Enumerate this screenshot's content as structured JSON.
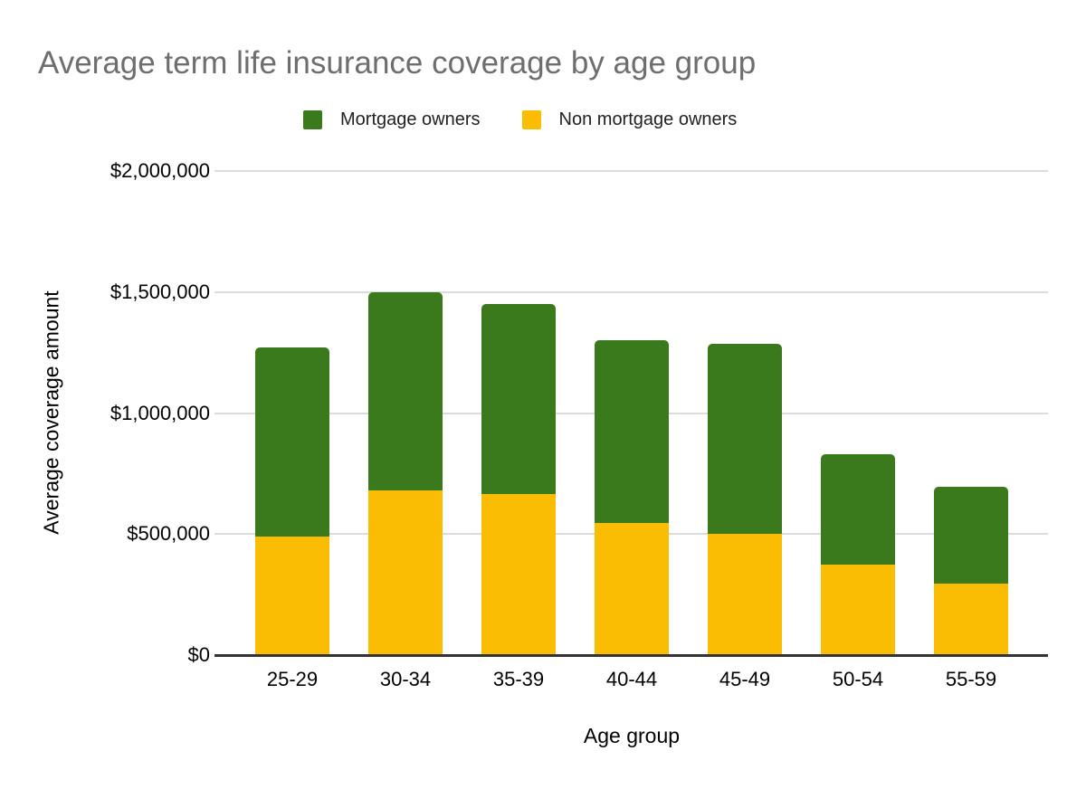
{
  "title": "Average term life insurance coverage by age group",
  "legend": {
    "items": [
      {
        "label": "Mortgage owners",
        "color": "#3a7a1d"
      },
      {
        "label": "Non mortgage owners",
        "color": "#fbbc04"
      }
    ]
  },
  "axes": {
    "x_title": "Age group",
    "y_title": "Average coverage amount"
  },
  "chart_data": {
    "type": "bar",
    "stacked": true,
    "title": "Average term life insurance coverage by age group",
    "categories": [
      "25-29",
      "30-34",
      "35-39",
      "40-44",
      "45-49",
      "50-54",
      "55-59"
    ],
    "series": [
      {
        "name": "Non mortgage owners",
        "color": "#fbbc04",
        "stack_position": "bottom",
        "values": [
          490000,
          680000,
          665000,
          545000,
          500000,
          375000,
          295000
        ]
      },
      {
        "name": "Mortgage owners",
        "color": "#3a7a1d",
        "stack_position": "top",
        "values": [
          780000,
          820000,
          785000,
          755000,
          785000,
          455000,
          400000
        ]
      }
    ],
    "stack_totals": [
      1270000,
      1500000,
      1450000,
      1300000,
      1285000,
      830000,
      695000
    ],
    "xlabel": "Age group",
    "ylabel": "Average coverage amount",
    "ylim": [
      0,
      2000000
    ],
    "ytick_step": 500000,
    "ytick_labels": [
      "$0",
      "$500,000",
      "$1,000,000",
      "$1,500,000",
      "$2,000,000"
    ],
    "grid": true,
    "legend_position": "top",
    "gridline_color": "#dcdcdc",
    "baseline_color": "#333333",
    "title_color": "#6e6e6e"
  }
}
